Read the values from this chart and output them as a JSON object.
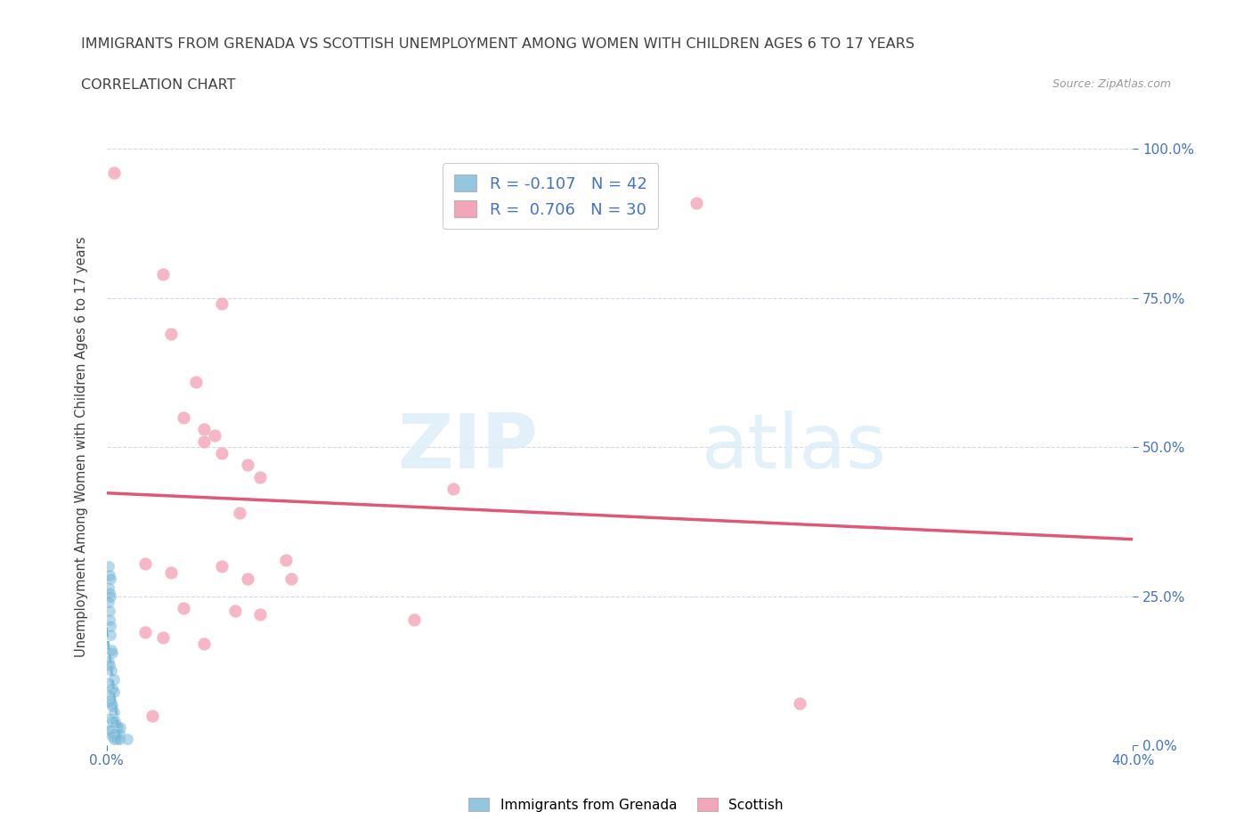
{
  "title": "IMMIGRANTS FROM GRENADA VS SCOTTISH UNEMPLOYMENT AMONG WOMEN WITH CHILDREN AGES 6 TO 17 YEARS",
  "subtitle": "CORRELATION CHART",
  "source": "Source: ZipAtlas.com",
  "ylabel": "Unemployment Among Women with Children Ages 6 to 17 years",
  "ytick_labels": [
    "0.0%",
    "25.0%",
    "50.0%",
    "75.0%",
    "100.0%"
  ],
  "xtick_left": "0.0%",
  "xtick_right": "40.0%",
  "legend_entries": [
    {
      "label": "R = -0.107   N = 42",
      "color": "#a8c8e8"
    },
    {
      "label": "R =  0.706   N = 30",
      "color": "#f4a0b8"
    }
  ],
  "legend_labels_bottom": [
    "Immigrants from Grenada",
    "Scottish"
  ],
  "watermark": "ZIPatlas",
  "blue_color": "#7ab8d8",
  "pink_color": "#f090a8",
  "trend_blue_color": "#7ab8d8",
  "trend_pink_color": "#e05878",
  "grid_color": "#d0d8e8",
  "title_color": "#404040",
  "axis_label_color": "#4472c4",
  "blue_scatter": [
    [
      0.1,
      30.0
    ],
    [
      0.12,
      28.5
    ],
    [
      0.15,
      28.0
    ],
    [
      0.1,
      26.5
    ],
    [
      0.12,
      25.5
    ],
    [
      0.14,
      25.0
    ],
    [
      0.1,
      24.0
    ],
    [
      0.11,
      22.5
    ],
    [
      0.13,
      21.0
    ],
    [
      0.15,
      20.0
    ],
    [
      0.16,
      18.5
    ],
    [
      0.2,
      16.0
    ],
    [
      0.22,
      15.5
    ],
    [
      0.1,
      14.0
    ],
    [
      0.12,
      13.5
    ],
    [
      0.18,
      12.5
    ],
    [
      0.28,
      11.0
    ],
    [
      0.1,
      10.5
    ],
    [
      0.22,
      9.5
    ],
    [
      0.3,
      9.0
    ],
    [
      0.1,
      8.5
    ],
    [
      0.11,
      7.5
    ],
    [
      0.18,
      7.0
    ],
    [
      0.24,
      6.5
    ],
    [
      0.3,
      5.5
    ],
    [
      0.16,
      4.5
    ],
    [
      0.22,
      4.0
    ],
    [
      0.32,
      4.0
    ],
    [
      0.38,
      3.5
    ],
    [
      0.45,
      3.0
    ],
    [
      0.55,
      3.0
    ],
    [
      0.1,
      2.5
    ],
    [
      0.16,
      2.5
    ],
    [
      0.24,
      2.0
    ],
    [
      0.3,
      2.0
    ],
    [
      0.38,
      2.0
    ],
    [
      0.5,
      2.0
    ],
    [
      0.22,
      1.5
    ],
    [
      0.3,
      1.0
    ],
    [
      0.4,
      1.0
    ],
    [
      0.5,
      1.0
    ],
    [
      0.8,
      1.0
    ]
  ],
  "pink_scatter": [
    [
      0.3,
      96.0
    ],
    [
      23.0,
      91.0
    ],
    [
      2.2,
      79.0
    ],
    [
      4.5,
      74.0
    ],
    [
      2.5,
      69.0
    ],
    [
      3.5,
      61.0
    ],
    [
      3.0,
      55.0
    ],
    [
      3.8,
      53.0
    ],
    [
      4.2,
      52.0
    ],
    [
      3.8,
      51.0
    ],
    [
      4.5,
      49.0
    ],
    [
      5.5,
      47.0
    ],
    [
      6.0,
      45.0
    ],
    [
      13.5,
      43.0
    ],
    [
      5.2,
      39.0
    ],
    [
      7.0,
      31.0
    ],
    [
      1.5,
      30.5
    ],
    [
      4.5,
      30.0
    ],
    [
      2.5,
      29.0
    ],
    [
      5.5,
      28.0
    ],
    [
      7.2,
      28.0
    ],
    [
      3.0,
      23.0
    ],
    [
      5.0,
      22.5
    ],
    [
      6.0,
      22.0
    ],
    [
      12.0,
      21.0
    ],
    [
      1.5,
      19.0
    ],
    [
      2.2,
      18.0
    ],
    [
      3.8,
      17.0
    ],
    [
      27.0,
      7.0
    ],
    [
      1.8,
      5.0
    ]
  ],
  "xlim": [
    0,
    40.0
  ],
  "ylim": [
    0,
    100.0
  ],
  "pink_trend": [
    0.0,
    40.0,
    0.0,
    100.0
  ],
  "blue_trend_x": [
    0.0,
    18.0
  ],
  "blue_trend_slope": -0.5,
  "blue_trend_intercept": 8.0
}
